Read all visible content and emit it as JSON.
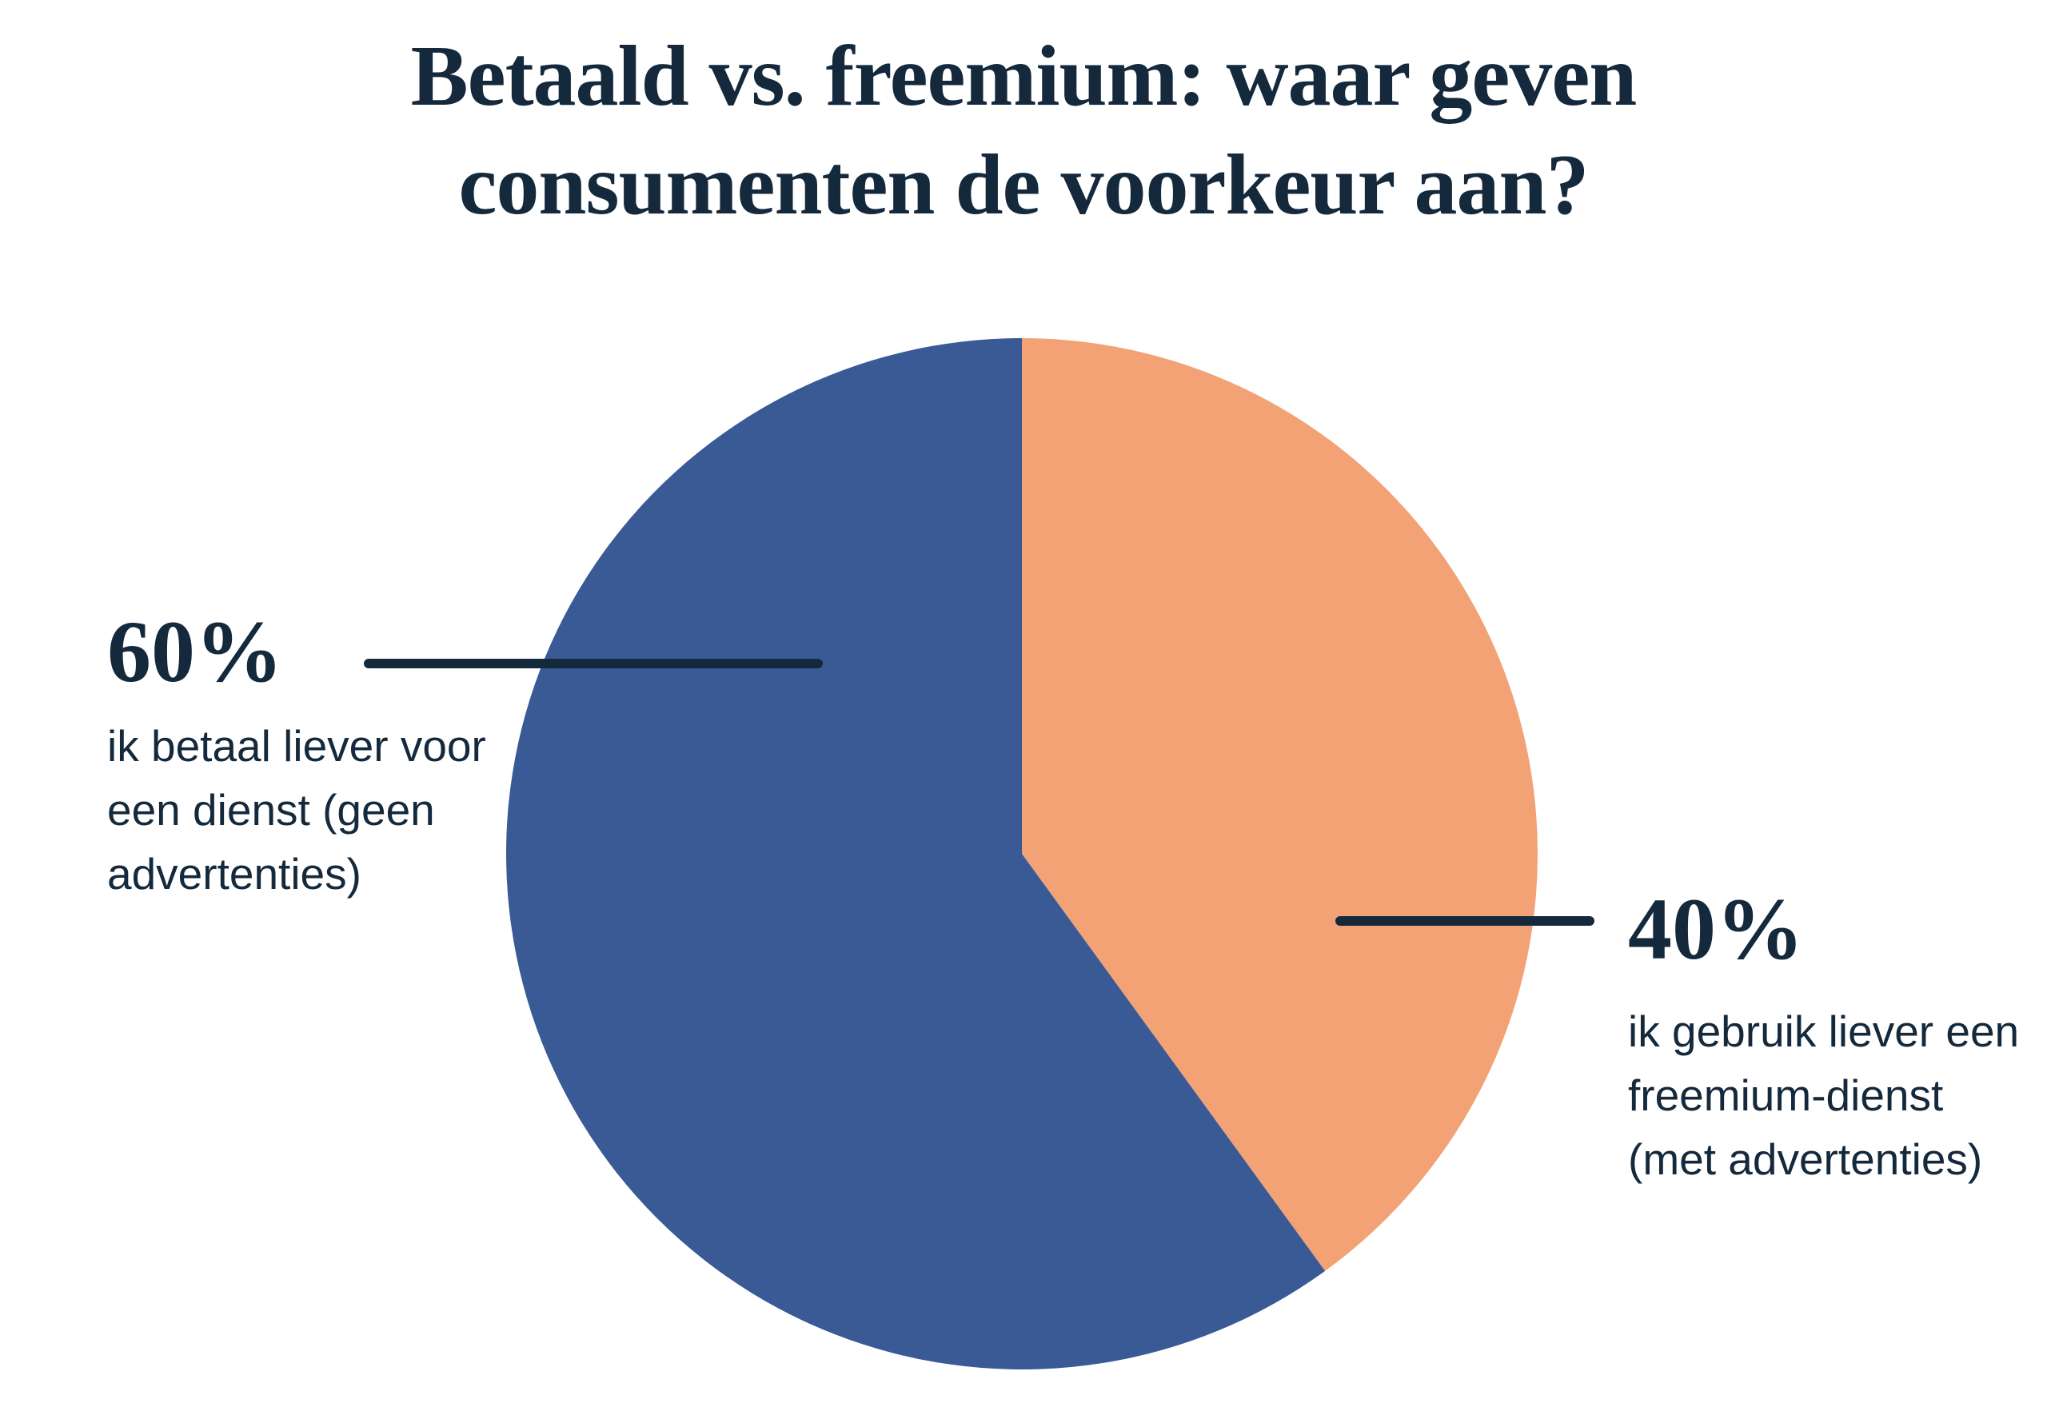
{
  "title": {
    "line1": "Betaald vs. freemium: waar geven",
    "line2": "consumenten de voorkeur aan?"
  },
  "colors": {
    "background": "#ffffff",
    "text": "#14293c",
    "leader_line": "#14293c",
    "slice_paid": "#3a5a96",
    "slice_freemium": "#f3a276"
  },
  "chart_data": {
    "type": "pie",
    "title": "Betaald vs. freemium: waar geven consumenten de voorkeur aan?",
    "start_angle_deg": 0,
    "direction": "clockwise",
    "legend_position": "callout-labels",
    "slices": [
      {
        "id": "freemium",
        "value_pct": 40,
        "color": "#f3a276",
        "label": "ik gebruik liever een freemium-dienst (met advertenties)"
      },
      {
        "id": "paid",
        "value_pct": 60,
        "color": "#3a5a96",
        "label": "ik betaal liever voor een dienst (geen advertenties)"
      }
    ]
  },
  "callouts": {
    "paid": {
      "pct": "60%",
      "desc_lines": [
        "ik betaal liever voor",
        "een dienst (geen",
        "advertenties)"
      ]
    },
    "freemium": {
      "pct": "40%",
      "desc_lines": [
        "ik gebruik liever een",
        "freemium-dienst",
        "(met advertenties)"
      ]
    }
  }
}
